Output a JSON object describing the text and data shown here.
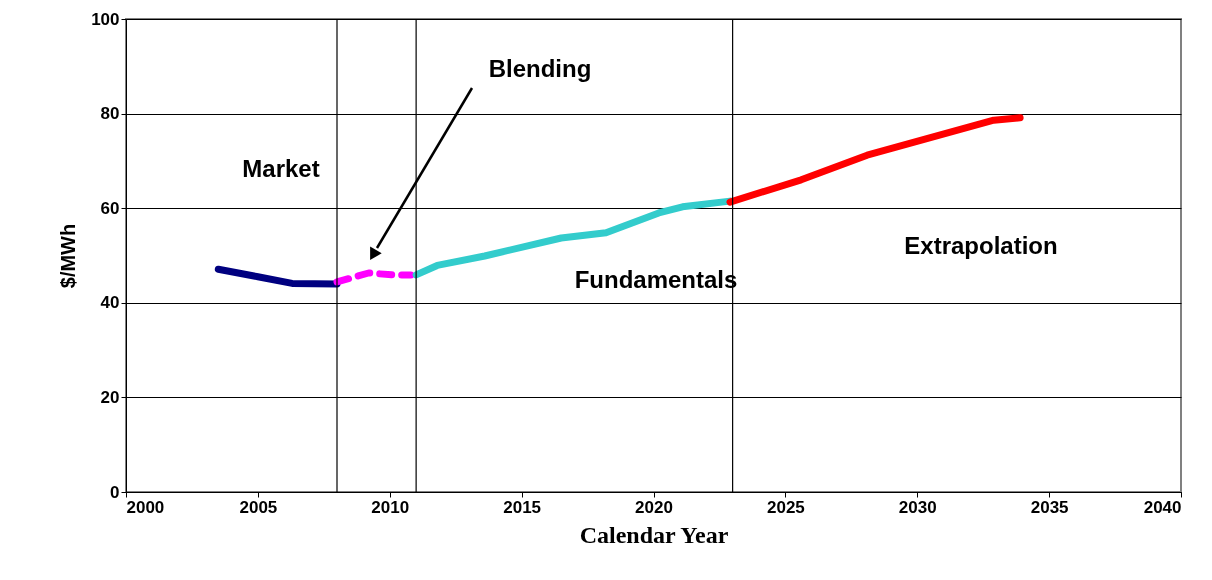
{
  "chart_data": {
    "type": "line",
    "xlabel": "Calendar Year",
    "ylabel": "$/MWh",
    "xlim": [
      2000,
      2040
    ],
    "xticks": [
      2000,
      2005,
      2010,
      2015,
      2020,
      2025,
      2030,
      2035,
      2040
    ],
    "ylim": [
      0,
      100
    ],
    "yticks": [
      0,
      20,
      40,
      60,
      80,
      100
    ],
    "grid": "y",
    "legend": false,
    "marker": "none",
    "series": [
      {
        "color": "#000080",
        "line_style": "solid",
        "x": [
          2003.5,
          2005,
          2006.3,
          2008
        ],
        "values": [
          47.1,
          45.5,
          44.1,
          44.0
        ]
      },
      {
        "color": "#ff00ff",
        "line_style": "dashed",
        "x": [
          2008,
          2009.2,
          2010.1,
          2010.8
        ],
        "values": [
          44.4,
          46.3,
          45.9,
          45.9
        ]
      },
      {
        "color": "#33cccc",
        "line_style": "solid",
        "x": [
          2011,
          2011.8,
          2013.6,
          2016.5,
          2018.2,
          2020.2,
          2021.1,
          2022.9
        ],
        "values": [
          45.9,
          47.9,
          49.9,
          53.7,
          54.8,
          59.0,
          60.3,
          61.5
        ]
      },
      {
        "color": "#ff0000",
        "line_style": "solid",
        "x": [
          2022.9,
          2025.6,
          2028.1,
          2032.9,
          2033.9
        ],
        "values": [
          61.3,
          66.0,
          71.2,
          78.6,
          79.1
        ]
      }
    ],
    "ref_lines": [
      {
        "axis": "x",
        "value": 2008,
        "color": "#000000"
      },
      {
        "axis": "x",
        "value": 2011,
        "color": "#000000"
      },
      {
        "axis": "x",
        "value": 2023,
        "color": "#000000"
      }
    ],
    "annotations": [
      "Market",
      "Blending",
      "Fundamentals",
      "Extrapolation"
    ]
  }
}
